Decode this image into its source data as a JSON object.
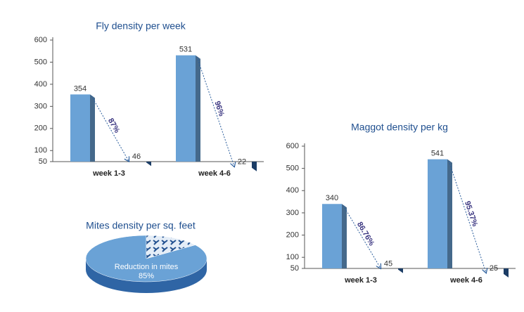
{
  "chart_data": [
    {
      "type": "bar",
      "title": "Fly density per week",
      "categories": [
        "week 1-3",
        "week 4-6"
      ],
      "series": [
        {
          "color": "#6aa2d6",
          "values": [
            354,
            531
          ]
        },
        {
          "color": "#2a5d9c",
          "values": [
            46,
            22
          ]
        }
      ],
      "annotations": [
        "87%",
        "96%"
      ],
      "ylim": [
        50,
        600
      ],
      "yticks": [
        50,
        100,
        200,
        300,
        400,
        500,
        600
      ]
    },
    {
      "type": "pie",
      "title": "Mites density per sq. feet",
      "categories": [
        "Reduction in mites",
        null
      ],
      "values": [
        85,
        15
      ],
      "value_labels": [
        "85%",
        null
      ],
      "colors": [
        "#6aa2d6",
        "#e4edf7"
      ]
    },
    {
      "type": "bar",
      "title": "Maggot density per kg",
      "categories": [
        "week 1-3",
        "week 4-6"
      ],
      "series": [
        {
          "color": "#6aa2d6",
          "values": [
            340,
            541
          ]
        },
        {
          "color": "#2a5d9c",
          "values": [
            45,
            25
          ]
        }
      ],
      "annotations": [
        "86.76%",
        "95.37%"
      ],
      "ylim": [
        50,
        600
      ],
      "yticks": [
        50,
        100,
        200,
        300,
        400,
        500,
        600
      ]
    }
  ]
}
